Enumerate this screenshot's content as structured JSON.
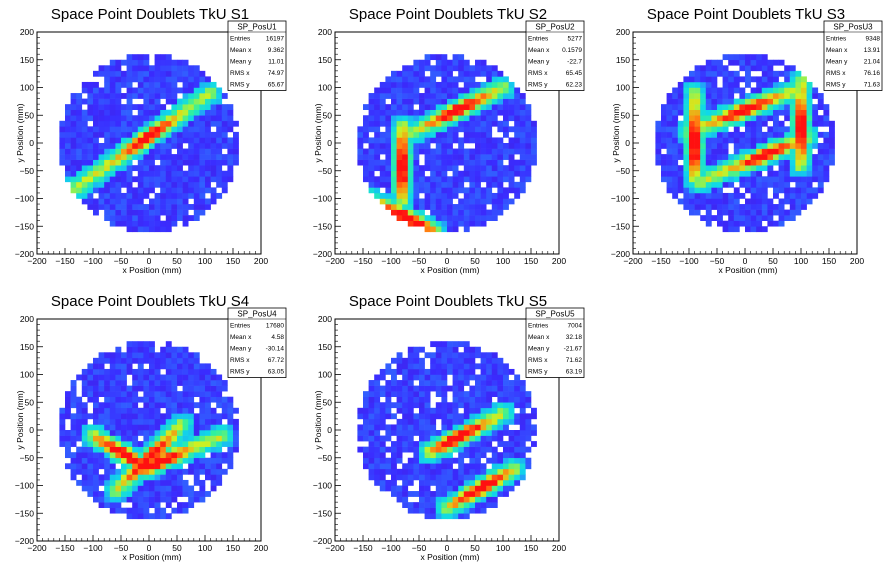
{
  "axes": {
    "xlabel": "x Position (mm)",
    "ylabel": "y Position (mm)",
    "ticks": [
      "−200",
      "−150",
      "−100",
      "−50",
      "0",
      "50",
      "100",
      "150",
      "200"
    ]
  },
  "colors": {
    "frame": "#000000",
    "scale": [
      "#5010b0",
      "#3a2cff",
      "#2a8cff",
      "#10d8e8",
      "#30f0a0",
      "#d0f020",
      "#ff8010",
      "#ff1010"
    ]
  },
  "chart_data": [
    {
      "type": "heatmap",
      "title": "Space Point Doublets TkU S1",
      "xlim": [
        -200,
        200
      ],
      "ylim": [
        -200,
        200
      ],
      "stats": {
        "name": "SP_PosU1",
        "rows": [
          {
            "label": "Entries",
            "value": "16197"
          },
          {
            "label": "Mean x",
            "value": "9.362"
          },
          {
            "label": "Mean y",
            "value": "11.01"
          },
          {
            "label": "RMS x",
            "value": "74.97"
          },
          {
            "label": "RMS y",
            "value": "65.67"
          }
        ]
      },
      "tracks": [
        {
          "x1": -130,
          "y1": -80,
          "x2": 110,
          "y2": 90,
          "peak_x": 0,
          "peak_y": 10
        }
      ]
    },
    {
      "type": "heatmap",
      "title": "Space Point Doublets TkU S2",
      "xlim": [
        -200,
        200
      ],
      "ylim": [
        -200,
        200
      ],
      "stats": {
        "name": "SP_PosU2",
        "rows": [
          {
            "label": "Entries",
            "value": "5277"
          },
          {
            "label": "Mean x",
            "value": "0.1579"
          },
          {
            "label": "Mean y",
            "value": "-22.7"
          },
          {
            "label": "RMS x",
            "value": "65.45"
          },
          {
            "label": "RMS y",
            "value": "62.23"
          }
        ]
      },
      "tracks": [
        {
          "x1": -140,
          "y1": -100,
          "x2": -20,
          "y2": -160,
          "peak_x": -70,
          "peak_y": -130
        },
        {
          "x1": -60,
          "y1": 20,
          "x2": 100,
          "y2": 100,
          "peak_x": 20,
          "peak_y": 60
        },
        {
          "x1": -80,
          "y1": -100,
          "x2": -80,
          "y2": 30,
          "peak_x": -80,
          "peak_y": -40
        }
      ]
    },
    {
      "type": "heatmap",
      "title": "Space Point Doublets TkU S3",
      "xlim": [
        -200,
        200
      ],
      "ylim": [
        -200,
        200
      ],
      "stats": {
        "name": "SP_PosU3",
        "rows": [
          {
            "label": "Entries",
            "value": "9348"
          },
          {
            "label": "Mean x",
            "value": "13.91"
          },
          {
            "label": "Mean y",
            "value": "21.04"
          },
          {
            "label": "RMS x",
            "value": "76.16"
          },
          {
            "label": "RMS y",
            "value": "71.63"
          }
        ]
      },
      "tracks": [
        {
          "x1": -80,
          "y1": -70,
          "x2": 110,
          "y2": 10,
          "peak_x": 40,
          "peak_y": -30
        },
        {
          "x1": -100,
          "y1": 20,
          "x2": 100,
          "y2": 100,
          "peak_x": 0,
          "peak_y": 60
        },
        {
          "x1": -90,
          "y1": -60,
          "x2": -90,
          "y2": 90,
          "peak_x": -90,
          "peak_y": 0
        },
        {
          "x1": 100,
          "y1": -40,
          "x2": 100,
          "y2": 110,
          "peak_x": 100,
          "peak_y": 30
        }
      ]
    },
    {
      "type": "heatmap",
      "title": "Space Point Doublets TkU S4",
      "xlim": [
        -200,
        200
      ],
      "ylim": [
        -200,
        200
      ],
      "stats": {
        "name": "SP_PosU4",
        "rows": [
          {
            "label": "Entries",
            "value": "17680"
          },
          {
            "label": "Mean x",
            "value": "4.58"
          },
          {
            "label": "Mean y",
            "value": "-30.14"
          },
          {
            "label": "RMS x",
            "value": "67.72"
          },
          {
            "label": "RMS y",
            "value": "63.05"
          }
        ]
      },
      "tracks": [
        {
          "x1": -100,
          "y1": -10,
          "x2": 0,
          "y2": -70,
          "peak_x": -40,
          "peak_y": -40
        },
        {
          "x1": -10,
          "y1": -70,
          "x2": 130,
          "y2": -10,
          "peak_x": 20,
          "peak_y": -60
        },
        {
          "x1": -60,
          "y1": -110,
          "x2": 60,
          "y2": 10,
          "peak_x": 0,
          "peak_y": -50
        }
      ]
    },
    {
      "type": "heatmap",
      "title": "Space Point Doublets TkU S5",
      "xlim": [
        -200,
        200
      ],
      "ylim": [
        -200,
        200
      ],
      "stats": {
        "name": "SP_PosU5",
        "rows": [
          {
            "label": "Entries",
            "value": "7004"
          },
          {
            "label": "Mean x",
            "value": "32.18"
          },
          {
            "label": "Mean y",
            "value": "-21.67"
          },
          {
            "label": "RMS x",
            "value": "71.62"
          },
          {
            "label": "RMS y",
            "value": "63.19"
          }
        ]
      },
      "tracks": [
        {
          "x1": -30,
          "y1": -40,
          "x2": 100,
          "y2": 30,
          "peak_x": 20,
          "peak_y": -10
        },
        {
          "x1": 0,
          "y1": -140,
          "x2": 120,
          "y2": -70,
          "peak_x": 60,
          "peak_y": -100
        }
      ]
    }
  ]
}
